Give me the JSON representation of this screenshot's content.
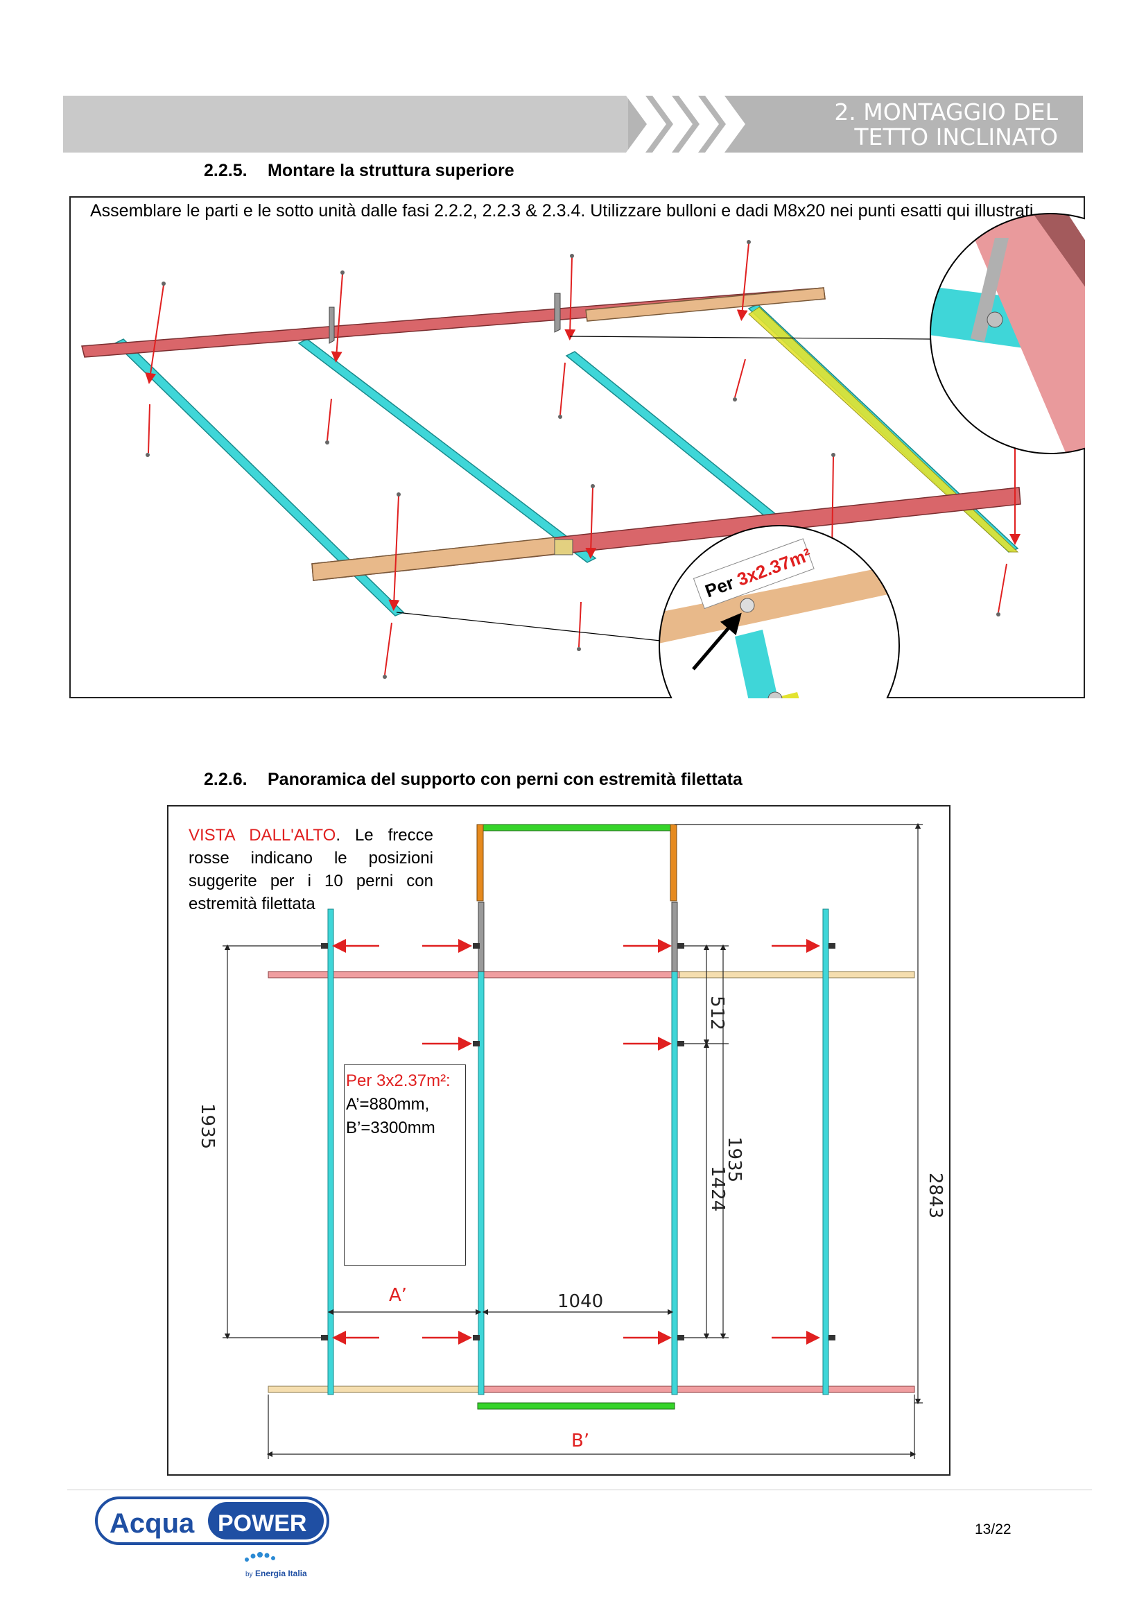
{
  "header": {
    "title_line1": "2. MONTAGGIO DEL",
    "title_line2": "TETTO INCLINATO"
  },
  "section1": {
    "number": "2.2.5.",
    "title": "Montare la struttura superiore",
    "instructions": "Assemblare le parti e le sotto unità dalle fasi 2.2.2, 2.2.3 & 2.3.4. Utilizzare bulloni e dadi M8x20 nei punti esatti qui illustrati",
    "callout_prefix": "Per ",
    "callout_size": "3x2.37m²"
  },
  "section2": {
    "number": "2.2.6.",
    "title": "Panoramica del supporto con perni con estremità filettata",
    "intro_red": "VISTA DALL'ALTO",
    "intro_rest": ". Le frecce rosse indicano le posizioni suggerite per i 10 perni con estremità filettata",
    "spec_title": "Per 3x2.37m²:",
    "spec_a": "A’=880mm,",
    "spec_b": "B’=3300mm",
    "dim_512": "512",
    "dim_1935_left": "1935",
    "dim_1935_right": "1935",
    "dim_1424": "1424",
    "dim_2843": "2843",
    "dim_1040": "1040",
    "dim_a": "A’",
    "dim_b": "B’"
  },
  "footer": {
    "logo_word1": "Acqua",
    "logo_word2": "POWER",
    "logo_by": "by",
    "logo_brand": "Energia Italia",
    "page": "13/22"
  },
  "colors": {
    "header_gray": "#c8c8c8",
    "rail_red": "#d9666a",
    "rail_tan": "#e8b98a",
    "profile_cyan": "#3fd6d8",
    "profile_yellow": "#e3e330",
    "frame_green": "#36d42a",
    "frame_orange": "#e68a1e",
    "arrow_red": "#e02020",
    "logo_blue": "#1f4fa3"
  }
}
